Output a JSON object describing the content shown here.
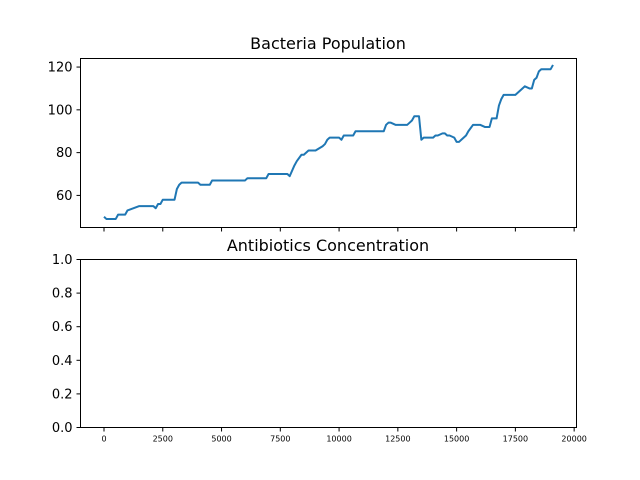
{
  "chart_data": [
    {
      "type": "line",
      "title": "Bacteria Population",
      "xlabel": "",
      "ylabel": "",
      "xlim": [
        -1000,
        20100
      ],
      "ylim": [
        45,
        124
      ],
      "yticks": [
        60,
        80,
        100,
        120
      ],
      "xticks": [
        0,
        2500,
        5000,
        7500,
        10000,
        12500,
        15000,
        17500,
        20000
      ],
      "show_xtick_labels": false,
      "grid": false,
      "line_color": "#1f77b4",
      "series": [
        {
          "x": [
            0,
            100,
            500,
            600,
            900,
            1000,
            1500,
            2100,
            2200,
            2300,
            2400,
            2500,
            2600,
            3000,
            3100,
            3200,
            3300,
            3500,
            4000,
            4100,
            4500,
            4600,
            5000,
            5500,
            6000,
            6100,
            6900,
            7000,
            7800,
            7900,
            8100,
            8200,
            8400,
            8500,
            8700,
            8900,
            9000,
            9300,
            9400,
            9500,
            9600,
            9700,
            9800,
            10000,
            10100,
            10200,
            10400,
            10600,
            10700,
            11500,
            11600,
            11700,
            11900,
            12000,
            12100,
            12200,
            12400,
            12600,
            12800,
            12900,
            13000,
            13100,
            13200,
            13300,
            13400,
            13500,
            13600,
            13800,
            14000,
            14100,
            14200,
            14400,
            14500,
            14600,
            14700,
            14900,
            15000,
            15100,
            15200,
            15300,
            15400,
            15500,
            15700,
            15800,
            15900,
            16000,
            16200,
            16400,
            16500,
            16700,
            16800,
            16900,
            17000,
            17200,
            17400,
            17500,
            17700,
            17800,
            17900,
            18100,
            18200,
            18300,
            18400,
            18500,
            18600,
            18700,
            19000,
            19100
          ],
          "y": [
            50,
            49,
            49,
            51,
            51,
            53,
            55,
            55,
            54,
            56,
            56,
            58,
            58,
            58,
            63,
            65,
            66,
            66,
            66,
            65,
            65,
            67,
            67,
            67,
            67,
            68,
            68,
            70,
            70,
            69,
            74,
            76,
            79,
            79,
            81,
            81,
            81,
            83,
            84,
            86,
            87,
            87,
            87,
            87,
            86,
            88,
            88,
            88,
            90,
            90,
            90,
            90,
            90,
            93,
            94,
            94,
            93,
            93,
            93,
            93,
            94,
            95,
            97,
            97,
            97,
            86,
            87,
            87,
            87,
            88,
            88,
            89,
            89,
            88,
            88,
            87,
            85,
            85,
            86,
            87,
            88,
            90,
            93,
            93,
            93,
            93,
            92,
            92,
            96,
            96,
            102,
            105,
            107,
            107,
            107,
            107,
            109,
            110,
            111,
            110,
            110,
            114,
            115,
            118,
            119,
            119,
            119,
            121
          ]
        }
      ]
    },
    {
      "type": "line",
      "title": "Antibiotics Concentration",
      "xlabel": "",
      "ylabel": "",
      "xlim": [
        -1000,
        20100
      ],
      "ylim": [
        0.0,
        1.0
      ],
      "yticks": [
        "0.0",
        "0.2",
        "0.4",
        "0.6",
        "0.8",
        "1.0"
      ],
      "xticks": [
        "0",
        "2500",
        "5000",
        "7500",
        "10000",
        "12500",
        "15000",
        "17500",
        "20000"
      ],
      "grid": false,
      "series": []
    }
  ]
}
